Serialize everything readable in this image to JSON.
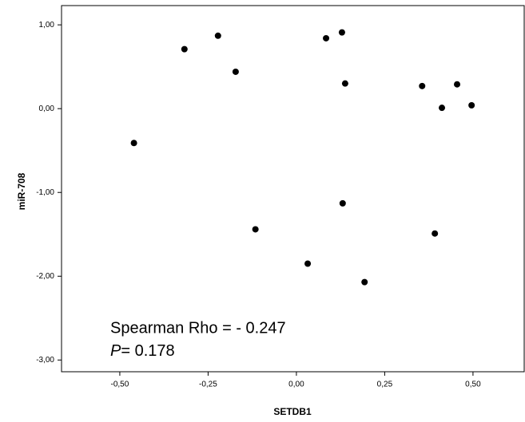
{
  "chart_data": {
    "type": "scatter",
    "x_label": "SETDB1",
    "y_label": "miR-708",
    "x": [
      -0.46,
      -0.317,
      -0.222,
      -0.172,
      -0.116,
      0.032,
      0.084,
      0.129,
      0.138,
      0.131,
      0.193,
      0.356,
      0.392,
      0.412,
      0.455,
      0.496
    ],
    "values": [
      -0.41,
      0.71,
      0.87,
      0.44,
      -1.44,
      -1.85,
      0.84,
      0.91,
      0.3,
      -1.13,
      -2.07,
      0.27,
      -1.49,
      0.01,
      0.29,
      0.04
    ],
    "color": "#000000",
    "xlim": [
      -0.665,
      0.645
    ],
    "ylim": [
      -3.14,
      1.23
    ],
    "xticks": [
      {
        "value": -0.5,
        "label": "-0,50"
      },
      {
        "value": -0.25,
        "label": "-0,25"
      },
      {
        "value": 0,
        "label": "0,00"
      },
      {
        "value": 0.25,
        "label": "0,25"
      },
      {
        "value": 0.5,
        "label": "0,50"
      }
    ],
    "yticks": [
      {
        "value": 1,
        "label": "1,00"
      },
      {
        "value": 0,
        "label": "0,00"
      },
      {
        "value": -1,
        "label": "-1,00"
      },
      {
        "value": -2,
        "label": "-2,00"
      },
      {
        "value": -3,
        "label": "-3,00"
      }
    ],
    "annotation": "Spearman Rho = - 0.247",
    "p_symbol": "P",
    "p_text": "= 0.178"
  }
}
